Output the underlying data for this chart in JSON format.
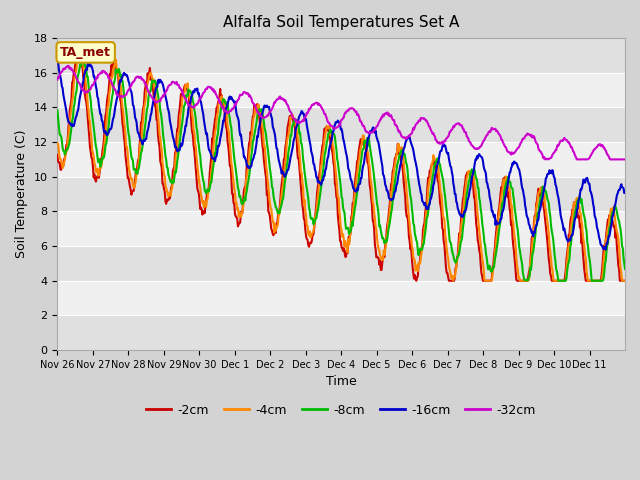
{
  "title": "Alfalfa Soil Temperatures Set A",
  "xlabel": "Time",
  "ylabel": "Soil Temperature (C)",
  "ylim": [
    0,
    18
  ],
  "yticks": [
    0,
    2,
    4,
    6,
    8,
    10,
    12,
    14,
    16,
    18
  ],
  "xtick_labels": [
    "Nov 26",
    "Nov 27",
    "Nov 28",
    "Nov 29",
    "Nov 30",
    "Dec 1",
    "Dec 2",
    "Dec 3",
    "Dec 4",
    "Dec 5",
    "Dec 6",
    "Dec 7",
    "Dec 8",
    "Dec 9",
    "Dec 10",
    "Dec 11"
  ],
  "annotation_text": "TA_met",
  "lines": {
    "-2cm": {
      "color": "#cc0000",
      "lw": 1.5
    },
    "-4cm": {
      "color": "#ff8800",
      "lw": 1.5
    },
    "-8cm": {
      "color": "#00bb00",
      "lw": 1.5
    },
    "-16cm": {
      "color": "#0000cc",
      "lw": 1.5
    },
    "-32cm": {
      "color": "#cc00cc",
      "lw": 1.5
    }
  },
  "legend_order": [
    "-2cm",
    "-4cm",
    "-8cm",
    "-16cm",
    "-32cm"
  ],
  "fig_bg": "#d3d3d3",
  "plot_bg": "#e8e8e8",
  "band_colors": [
    "#e0e0e0",
    "#f0f0f0"
  ]
}
